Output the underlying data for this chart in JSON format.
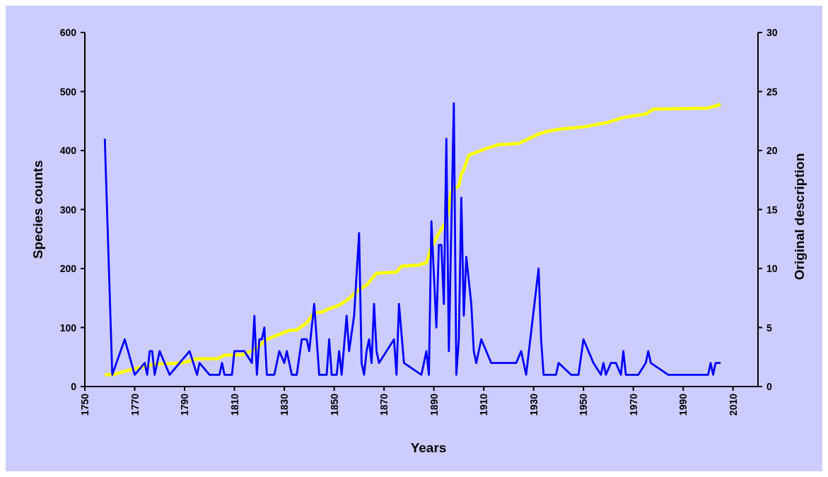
{
  "chart_data": {
    "type": "line",
    "xlabel": "Years",
    "ylabel": "Species counts",
    "y2label": "Original description",
    "xlim": [
      1750,
      2020
    ],
    "xticks": [
      1750,
      1770,
      1790,
      1810,
      1830,
      1850,
      1870,
      1890,
      1910,
      1930,
      1950,
      1970,
      1990,
      2010
    ],
    "ylim": [
      0,
      600
    ],
    "yticks": [
      0,
      100,
      200,
      300,
      400,
      500,
      600
    ],
    "y2lim": [
      0,
      30
    ],
    "y2ticks": [
      0,
      5,
      10,
      15,
      20,
      25,
      30
    ],
    "grid": false,
    "marker": "none",
    "line_style": "solid",
    "series": [
      {
        "color": "#ffff00",
        "x": [
          1758,
          1761,
          1766,
          1778,
          1789,
          1795,
          1803,
          1806,
          1813,
          1818,
          1823,
          1832,
          1835,
          1837,
          1839,
          1842,
          1845,
          1848,
          1852,
          1855,
          1860,
          1863,
          1867,
          1875,
          1877,
          1884,
          1887,
          1889,
          1892,
          1895,
          1897,
          1900,
          1901,
          1902,
          1904,
          1910,
          1916,
          1924,
          1932,
          1935,
          1940,
          1950,
          1960,
          1966,
          1975,
          1978,
          2000,
          2005
        ],
        "values": [
          20,
          20,
          26,
          38,
          40,
          47,
          47,
          53,
          54,
          62,
          80,
          95,
          96,
          102,
          108,
          125,
          126,
          132,
          138,
          146,
          164,
          172,
          192,
          194,
          204,
          206,
          210,
          236,
          260,
          280,
          332,
          340,
          360,
          368,
          392,
          402,
          410,
          412,
          428,
          432,
          436,
          440,
          448,
          456,
          462,
          470,
          472,
          478
        ]
      },
      {
        "color": "#0000ff",
        "axis": "y2",
        "x": [
          1758,
          1761,
          1766,
          1770,
          1774,
          1775,
          1776,
          1777,
          1778,
          1780,
          1784,
          1792,
          1795,
          1796,
          1800,
          1804,
          1805,
          1806,
          1809,
          1810,
          1814,
          1817,
          1818,
          1819,
          1820,
          1821,
          1822,
          1823,
          1826,
          1828,
          1830,
          1831,
          1833,
          1835,
          1837,
          1839,
          1840,
          1842,
          1844,
          1847,
          1848,
          1849,
          1851,
          1852,
          1853,
          1855,
          1856,
          1858,
          1860,
          1861,
          1862,
          1863,
          1864,
          1865,
          1866,
          1867,
          1868,
          1874,
          1875,
          1876,
          1878,
          1885,
          1887,
          1888,
          1889,
          1891,
          1892,
          1893,
          1894,
          1895,
          1896,
          1898,
          1899,
          1900,
          1901,
          1902,
          1903,
          1905,
          1906,
          1907,
          1909,
          1911,
          1913,
          1923,
          1925,
          1927,
          1932,
          1933,
          1934,
          1939,
          1940,
          1945,
          1948,
          1950,
          1954,
          1957,
          1958,
          1959,
          1961,
          1963,
          1965,
          1966,
          1967,
          1972,
          1975,
          1976,
          1977,
          1984,
          2000,
          2001,
          2002,
          2003,
          2005
        ],
        "values": [
          21,
          1,
          4,
          1,
          2,
          1,
          3,
          3,
          1,
          3,
          1,
          3,
          1,
          2,
          1,
          1,
          2,
          1,
          1,
          3,
          3,
          2,
          6,
          1,
          4,
          4,
          5,
          1,
          1,
          3,
          2,
          3,
          1,
          1,
          4,
          4,
          3,
          7,
          1,
          1,
          4,
          1,
          1,
          3,
          1,
          6,
          3,
          6,
          13,
          2,
          1,
          3,
          4,
          2,
          7,
          3,
          2,
          4,
          1,
          7,
          2,
          1,
          3,
          1,
          14,
          5,
          12,
          12,
          7,
          21,
          3,
          24,
          1,
          4,
          16,
          6,
          11,
          7,
          3,
          2,
          4,
          3,
          2,
          2,
          3,
          1,
          10,
          4,
          1,
          1,
          2,
          1,
          1,
          4,
          2,
          1,
          2,
          1,
          2,
          2,
          1,
          3,
          1,
          1,
          2,
          3,
          2,
          1,
          1,
          2,
          1,
          2,
          2
        ]
      }
    ]
  }
}
